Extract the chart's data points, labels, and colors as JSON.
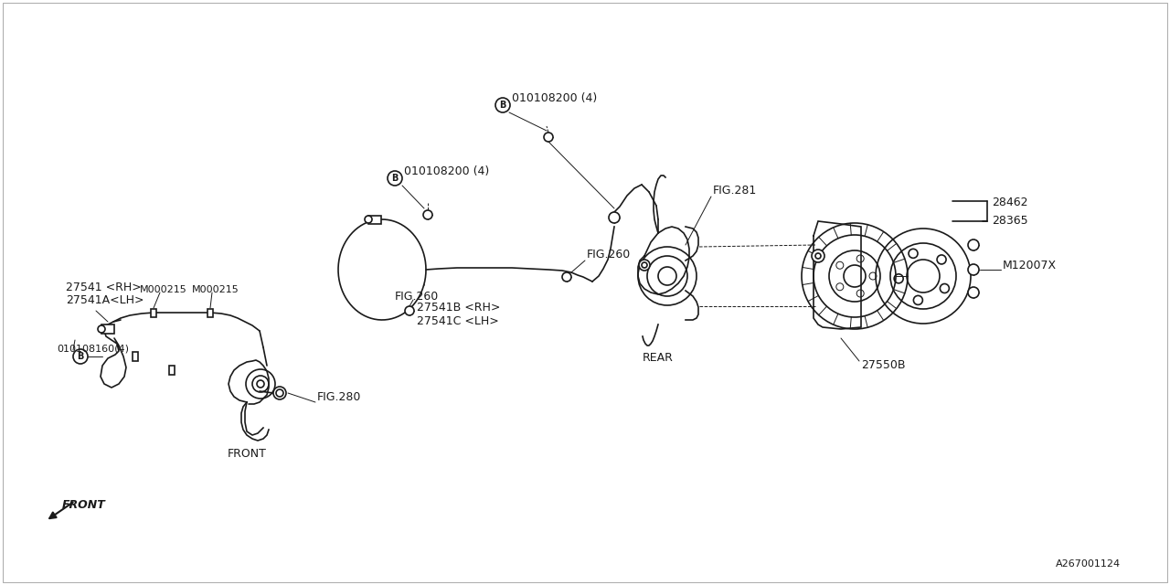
{
  "bg_color": "#ffffff",
  "line_color": "#1a1a1a",
  "fig_ref": "A267001124",
  "lw": 1.2,
  "tlw": 0.7,
  "labels": {
    "part_27541_rh": "27541 <RH>",
    "part_27541a_lh": "27541A<LH>",
    "part_B1": "010108200 (4)",
    "part_B2": "010108200 (4)",
    "part_B3": "010108160(4)",
    "part_m000215a": "M000215",
    "part_m000215b": "M000215",
    "part_27541b_rh": "27541B <RH>",
    "part_27541c_lh": "27541C <LH>",
    "fig260a": "FIG.260",
    "fig260b": "FIG.260",
    "fig281": "FIG.281",
    "fig280": "FIG.280",
    "rear_label": "REAR",
    "front_label": "FRONT",
    "front_arrow": "FRONT",
    "part_28462": "28462",
    "part_28365": "28365",
    "part_27550b": "27550B",
    "part_m12007x": "M12007X"
  },
  "fs_large": 10,
  "fs_med": 9,
  "fs_small": 8
}
